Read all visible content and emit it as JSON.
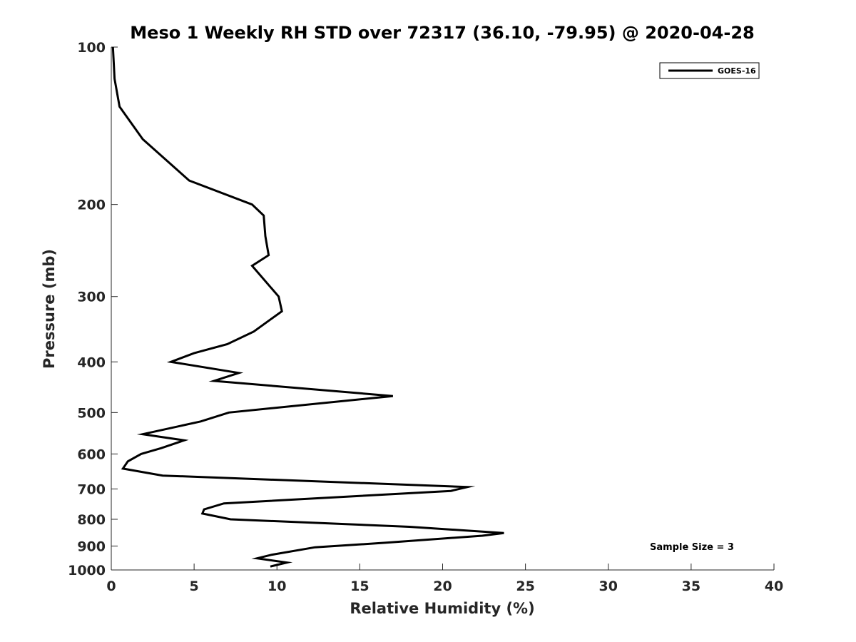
{
  "chart_data": {
    "type": "line",
    "title": "Meso 1 Weekly RH STD over 72317 (36.10, -79.95) @ 2020-04-28",
    "xlabel": "Relative Humidity (%)",
    "ylabel": "Pressure (mb)",
    "xlim": [
      0,
      40
    ],
    "ylim": [
      100,
      1000
    ],
    "y_scale": "log",
    "y_reversed": true,
    "grid": false,
    "legend_position": "top-right",
    "x_ticks": [
      0,
      5,
      10,
      15,
      20,
      25,
      30,
      35,
      40
    ],
    "y_ticks": [
      100,
      200,
      300,
      400,
      500,
      600,
      700,
      800,
      900,
      1000
    ],
    "series": [
      {
        "name": "GOES-16",
        "color": "#000000",
        "x": [
          0.1,
          0.2,
          0.5,
          1.9,
          4.7,
          8.5,
          9.2,
          9.3,
          9.5,
          8.5,
          10.1,
          10.3,
          8.6,
          7.0,
          5.0,
          3.6,
          7.7,
          6.2,
          17.0,
          7.1,
          5.4,
          1.9,
          4.4,
          3.0,
          1.8,
          1.0,
          0.7,
          3.1,
          21.5,
          20.5,
          6.8,
          5.6,
          5.5,
          7.2,
          18.0,
          23.7,
          22.4,
          16.6,
          12.3,
          9.7,
          8.8,
          10.6,
          9.6
        ],
        "y": [
          100,
          115,
          130,
          150,
          180,
          200,
          210,
          230,
          250,
          262,
          300,
          320,
          350,
          370,
          385,
          400,
          420,
          435,
          465,
          500,
          520,
          550,
          565,
          585,
          600,
          620,
          640,
          660,
          694,
          706,
          746,
          766,
          780,
          800,
          827,
          850,
          860,
          887,
          905,
          935,
          950,
          968,
          985
        ]
      }
    ],
    "annotations": [
      {
        "text": "Sample Size = 3"
      }
    ]
  }
}
